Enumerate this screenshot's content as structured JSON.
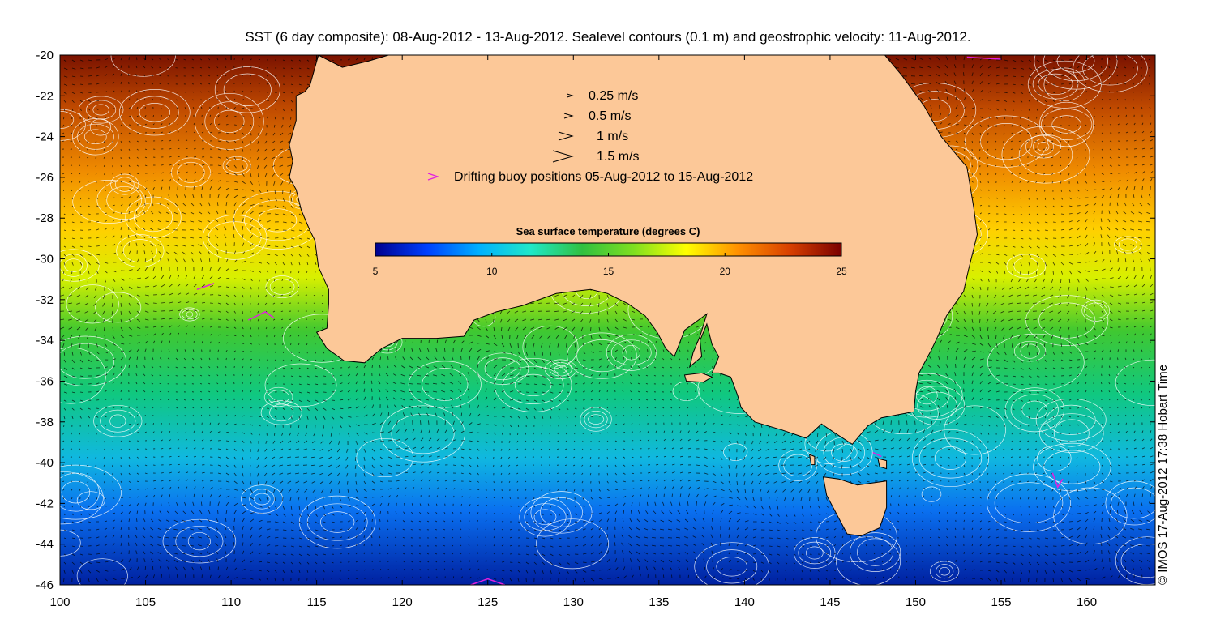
{
  "title": "SST (6 day composite): 08-Aug-2012 - 13-Aug-2012. Sealevel contours (0.1 m) and geostrophic velocity: 11-Aug-2012.",
  "credit": "© IMOS 17-Aug-2012 17:38 Hobart Time",
  "axes": {
    "lon_min": 100,
    "lon_max": 164,
    "lat_min": -46,
    "lat_max": -20,
    "x_ticks": [
      "100",
      "105",
      "110",
      "115",
      "120",
      "125",
      "130",
      "135",
      "140",
      "145",
      "150",
      "155",
      "160"
    ],
    "y_ticks": [
      "-20",
      "-22",
      "-24",
      "-26",
      "-28",
      "-30",
      "-32",
      "-34",
      "-36",
      "-38",
      "-40",
      "-42",
      "-44",
      "-46"
    ]
  },
  "velocity_legend": [
    {
      "label": "0.25 m/s",
      "speed": 0.25
    },
    {
      "label": "0.5 m/s",
      "speed": 0.5
    },
    {
      "label": "1 m/s",
      "speed": 1
    },
    {
      "label": "1.5 m/s",
      "speed": 1.5
    }
  ],
  "buoy_legend": {
    "label": "Drifting buoy positions 05-Aug-2012 to 15-Aug-2012",
    "color": "#e020e0"
  },
  "colorbar": {
    "title": "Sea surface temperature (degrees C)",
    "min": 5,
    "max": 25,
    "tick_labels": [
      "5",
      "10",
      "15",
      "20",
      "25"
    ],
    "tick_values": [
      5,
      10,
      15,
      20,
      25
    ],
    "stops": [
      "#00008f",
      "#0040ff",
      "#00b0ff",
      "#20e8c8",
      "#30c040",
      "#80e020",
      "#ffff00",
      "#ff9000",
      "#d84000",
      "#7a0000"
    ]
  },
  "colors": {
    "land": "#fcc898",
    "coast": "#000000",
    "contour": "#ffffff",
    "arrow": "#000000"
  }
}
